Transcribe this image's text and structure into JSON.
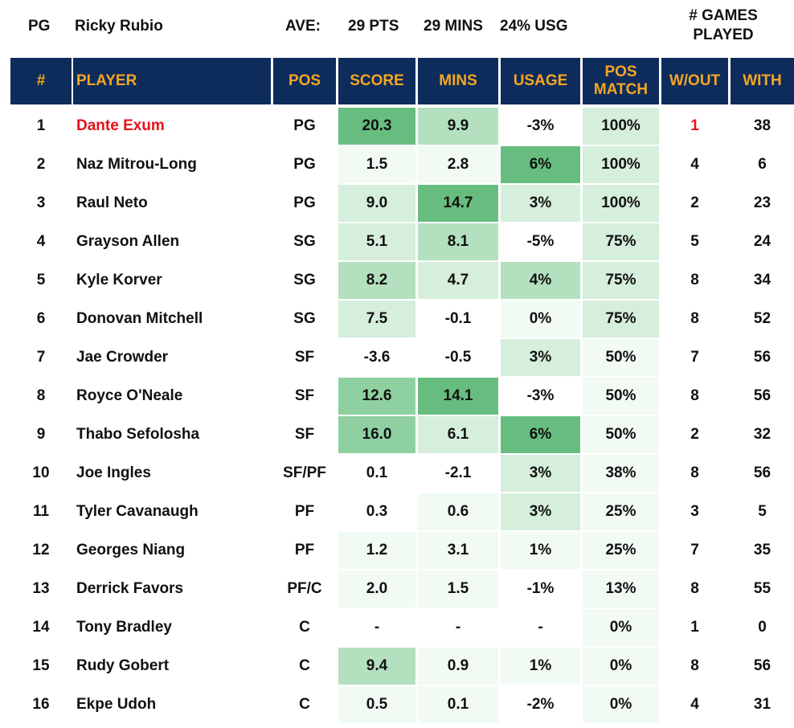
{
  "header": {
    "pos": "PG",
    "player": "Ricky Rubio",
    "ave_label": "AVE:",
    "pts": "29 PTS",
    "mins": "29 MINS",
    "usg": "24% USG",
    "games_played_line1": "# GAMES",
    "games_played_line2": "PLAYED"
  },
  "columns": [
    "#",
    "PLAYER",
    "POS",
    "SCORE",
    "MINS",
    "USAGE",
    "POS MATCH",
    "W/OUT",
    "WITH"
  ],
  "colors": {
    "header_bg": "#0d2c5c",
    "header_text": "#f5a623",
    "highlight_red": "#e8101a",
    "heat_1": "#f1faf3",
    "heat_2": "#d6eedc",
    "heat_3": "#b4e0bf",
    "heat_4": "#8fd0a1",
    "heat_5": "#67bd7f"
  },
  "rows": [
    {
      "num": "1",
      "player": "Dante Exum",
      "pos": "PG",
      "score": "20.3",
      "mins": "9.9",
      "usage": "-3%",
      "pos_match": "100%",
      "wout": "1",
      "with": "38",
      "highlight": true,
      "heat": {
        "score": 5,
        "mins": 3,
        "usage": 0,
        "pos_match": 2
      }
    },
    {
      "num": "2",
      "player": "Naz Mitrou-Long",
      "pos": "PG",
      "score": "1.5",
      "mins": "2.8",
      "usage": "6%",
      "pos_match": "100%",
      "wout": "4",
      "with": "6",
      "highlight": false,
      "heat": {
        "score": 1,
        "mins": 1,
        "usage": 5,
        "pos_match": 2
      }
    },
    {
      "num": "3",
      "player": "Raul Neto",
      "pos": "PG",
      "score": "9.0",
      "mins": "14.7",
      "usage": "3%",
      "pos_match": "100%",
      "wout": "2",
      "with": "23",
      "highlight": false,
      "heat": {
        "score": 2,
        "mins": 5,
        "usage": 2,
        "pos_match": 2
      }
    },
    {
      "num": "4",
      "player": "Grayson Allen",
      "pos": "SG",
      "score": "5.1",
      "mins": "8.1",
      "usage": "-5%",
      "pos_match": "75%",
      "wout": "5",
      "with": "24",
      "highlight": false,
      "heat": {
        "score": 2,
        "mins": 3,
        "usage": 0,
        "pos_match": 2
      }
    },
    {
      "num": "5",
      "player": "Kyle Korver",
      "pos": "SG",
      "score": "8.2",
      "mins": "4.7",
      "usage": "4%",
      "pos_match": "75%",
      "wout": "8",
      "with": "34",
      "highlight": false,
      "heat": {
        "score": 3,
        "mins": 2,
        "usage": 3,
        "pos_match": 2
      }
    },
    {
      "num": "6",
      "player": "Donovan Mitchell",
      "pos": "SG",
      "score": "7.5",
      "mins": "-0.1",
      "usage": "0%",
      "pos_match": "75%",
      "wout": "8",
      "with": "52",
      "highlight": false,
      "heat": {
        "score": 2,
        "mins": 0,
        "usage": 1,
        "pos_match": 2
      }
    },
    {
      "num": "7",
      "player": "Jae Crowder",
      "pos": "SF",
      "score": "-3.6",
      "mins": "-0.5",
      "usage": "3%",
      "pos_match": "50%",
      "wout": "7",
      "with": "56",
      "highlight": false,
      "heat": {
        "score": 0,
        "mins": 0,
        "usage": 2,
        "pos_match": 1
      }
    },
    {
      "num": "8",
      "player": "Royce O'Neale",
      "pos": "SF",
      "score": "12.6",
      "mins": "14.1",
      "usage": "-3%",
      "pos_match": "50%",
      "wout": "8",
      "with": "56",
      "highlight": false,
      "heat": {
        "score": 4,
        "mins": 5,
        "usage": 0,
        "pos_match": 1
      }
    },
    {
      "num": "9",
      "player": "Thabo Sefolosha",
      "pos": "SF",
      "score": "16.0",
      "mins": "6.1",
      "usage": "6%",
      "pos_match": "50%",
      "wout": "2",
      "with": "32",
      "highlight": false,
      "heat": {
        "score": 4,
        "mins": 2,
        "usage": 5,
        "pos_match": 1
      }
    },
    {
      "num": "10",
      "player": "Joe Ingles",
      "pos": "SF/PF",
      "score": "0.1",
      "mins": "-2.1",
      "usage": "3%",
      "pos_match": "38%",
      "wout": "8",
      "with": "56",
      "highlight": false,
      "heat": {
        "score": 0,
        "mins": 0,
        "usage": 2,
        "pos_match": 1
      }
    },
    {
      "num": "11",
      "player": "Tyler Cavanaugh",
      "pos": "PF",
      "score": "0.3",
      "mins": "0.6",
      "usage": "3%",
      "pos_match": "25%",
      "wout": "3",
      "with": "5",
      "highlight": false,
      "heat": {
        "score": 0,
        "mins": 1,
        "usage": 2,
        "pos_match": 1
      }
    },
    {
      "num": "12",
      "player": "Georges Niang",
      "pos": "PF",
      "score": "1.2",
      "mins": "3.1",
      "usage": "1%",
      "pos_match": "25%",
      "wout": "7",
      "with": "35",
      "highlight": false,
      "heat": {
        "score": 1,
        "mins": 1,
        "usage": 1,
        "pos_match": 1
      }
    },
    {
      "num": "13",
      "player": "Derrick Favors",
      "pos": "PF/C",
      "score": "2.0",
      "mins": "1.5",
      "usage": "-1%",
      "pos_match": "13%",
      "wout": "8",
      "with": "55",
      "highlight": false,
      "heat": {
        "score": 1,
        "mins": 1,
        "usage": 0,
        "pos_match": 1
      }
    },
    {
      "num": "14",
      "player": "Tony Bradley",
      "pos": "C",
      "score": "-",
      "mins": "-",
      "usage": "-",
      "pos_match": "0%",
      "wout": "1",
      "with": "0",
      "highlight": false,
      "heat": {
        "score": 0,
        "mins": 0,
        "usage": 0,
        "pos_match": 1
      }
    },
    {
      "num": "15",
      "player": "Rudy Gobert",
      "pos": "C",
      "score": "9.4",
      "mins": "0.9",
      "usage": "1%",
      "pos_match": "0%",
      "wout": "8",
      "with": "56",
      "highlight": false,
      "heat": {
        "score": 3,
        "mins": 1,
        "usage": 1,
        "pos_match": 1
      }
    },
    {
      "num": "16",
      "player": "Ekpe Udoh",
      "pos": "C",
      "score": "0.5",
      "mins": "0.1",
      "usage": "-2%",
      "pos_match": "0%",
      "wout": "4",
      "with": "31",
      "highlight": false,
      "heat": {
        "score": 1,
        "mins": 1,
        "usage": 0,
        "pos_match": 1
      }
    }
  ]
}
